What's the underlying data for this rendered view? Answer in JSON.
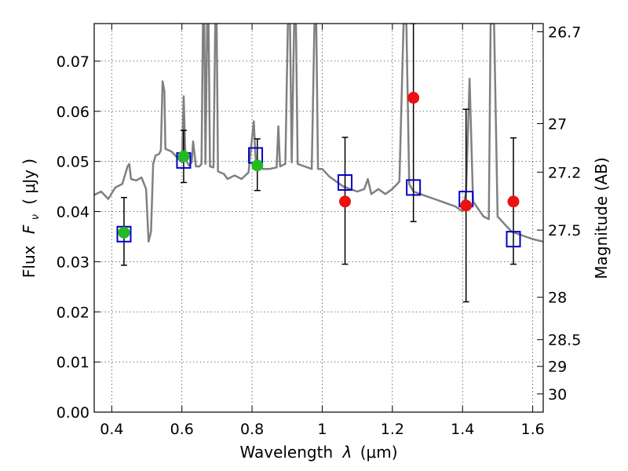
{
  "chart_data": {
    "type": "scatter",
    "xlabel_main": "Wavelength",
    "xlabel_sym": "λ",
    "xlabel_unit": "(μm)",
    "ylabel_main": "Flux",
    "ylabel_sym": "F",
    "ylabel_sub": "ν",
    "ylabel_unit": "( μJy )",
    "y2label": "Magnitude (AB)",
    "xlim": [
      0.35,
      1.63
    ],
    "ylim": [
      0,
      0.0775
    ],
    "grid": true,
    "x_ticks": [
      0.4,
      0.6,
      0.8,
      1.0,
      1.2,
      1.4,
      1.6
    ],
    "x_tick_labels": [
      "0.4",
      "0.6",
      "0.8",
      "1",
      "1.2",
      "1.4",
      "1.6"
    ],
    "y_ticks": [
      0,
      0.01,
      0.02,
      0.03,
      0.04,
      0.05,
      0.06,
      0.07
    ],
    "y_tick_labels": [
      "0.00",
      "0.01",
      "0.02",
      "0.03",
      "0.04",
      "0.05",
      "0.06",
      "0.07"
    ],
    "mag_ticks": [
      26.7,
      27,
      27.2,
      27.5,
      28,
      28.5,
      29,
      30
    ],
    "mag_tick_labels": [
      "26.7",
      "27",
      "27.2",
      "27.5",
      "28",
      "28.5",
      "29",
      "30"
    ],
    "colors": {
      "template": "#808080",
      "model_box": "#0000cc",
      "green_point": "#22bb22",
      "red_point": "#ee1111",
      "errorbar": "#000000"
    },
    "template_spectrum": [
      [
        0.35,
        0.0433
      ],
      [
        0.37,
        0.044
      ],
      [
        0.39,
        0.0425
      ],
      [
        0.41,
        0.0448
      ],
      [
        0.43,
        0.0455
      ],
      [
        0.445,
        0.049
      ],
      [
        0.45,
        0.0495
      ],
      [
        0.455,
        0.0465
      ],
      [
        0.47,
        0.0462
      ],
      [
        0.485,
        0.0468
      ],
      [
        0.498,
        0.0445
      ],
      [
        0.505,
        0.034
      ],
      [
        0.512,
        0.036
      ],
      [
        0.518,
        0.0495
      ],
      [
        0.525,
        0.0512
      ],
      [
        0.535,
        0.0515
      ],
      [
        0.54,
        0.0522
      ],
      [
        0.545,
        0.066
      ],
      [
        0.55,
        0.064
      ],
      [
        0.553,
        0.0525
      ],
      [
        0.57,
        0.052
      ],
      [
        0.59,
        0.0505
      ],
      [
        0.6,
        0.0498
      ],
      [
        0.605,
        0.063
      ],
      [
        0.61,
        0.0505
      ],
      [
        0.62,
        0.0492
      ],
      [
        0.628,
        0.0498
      ],
      [
        0.632,
        0.054
      ],
      [
        0.64,
        0.049
      ],
      [
        0.65,
        0.049
      ],
      [
        0.656,
        0.0495
      ],
      [
        0.66,
        0.0775
      ],
      [
        0.664,
        0.0775
      ],
      [
        0.667,
        0.0495
      ],
      [
        0.672,
        0.0775
      ],
      [
        0.676,
        0.0775
      ],
      [
        0.68,
        0.049
      ],
      [
        0.69,
        0.0488
      ],
      [
        0.695,
        0.0775
      ],
      [
        0.699,
        0.0775
      ],
      [
        0.703,
        0.048
      ],
      [
        0.72,
        0.0475
      ],
      [
        0.73,
        0.0465
      ],
      [
        0.75,
        0.0472
      ],
      [
        0.77,
        0.0465
      ],
      [
        0.79,
        0.0478
      ],
      [
        0.805,
        0.058
      ],
      [
        0.81,
        0.0505
      ],
      [
        0.83,
        0.0485
      ],
      [
        0.85,
        0.0485
      ],
      [
        0.87,
        0.0488
      ],
      [
        0.875,
        0.057
      ],
      [
        0.88,
        0.049
      ],
      [
        0.895,
        0.0495
      ],
      [
        0.902,
        0.0775
      ],
      [
        0.908,
        0.0775
      ],
      [
        0.913,
        0.0498
      ],
      [
        0.92,
        0.0775
      ],
      [
        0.925,
        0.0775
      ],
      [
        0.93,
        0.0495
      ],
      [
        0.95,
        0.049
      ],
      [
        0.97,
        0.0485
      ],
      [
        0.978,
        0.0775
      ],
      [
        0.983,
        0.0775
      ],
      [
        0.988,
        0.0485
      ],
      [
        1.0,
        0.0485
      ],
      [
        1.02,
        0.047
      ],
      [
        1.04,
        0.046
      ],
      [
        1.06,
        0.045
      ],
      [
        1.08,
        0.0445
      ],
      [
        1.1,
        0.044
      ],
      [
        1.12,
        0.0445
      ],
      [
        1.13,
        0.0465
      ],
      [
        1.14,
        0.0435
      ],
      [
        1.16,
        0.0445
      ],
      [
        1.18,
        0.0435
      ],
      [
        1.2,
        0.0445
      ],
      [
        1.22,
        0.046
      ],
      [
        1.232,
        0.0775
      ],
      [
        1.24,
        0.0775
      ],
      [
        1.248,
        0.0455
      ],
      [
        1.26,
        0.044
      ],
      [
        1.28,
        0.0435
      ],
      [
        1.3,
        0.043
      ],
      [
        1.32,
        0.0425
      ],
      [
        1.34,
        0.042
      ],
      [
        1.36,
        0.0415
      ],
      [
        1.38,
        0.041
      ],
      [
        1.4,
        0.04
      ],
      [
        1.41,
        0.044
      ],
      [
        1.42,
        0.0665
      ],
      [
        1.43,
        0.042
      ],
      [
        1.44,
        0.041
      ],
      [
        1.46,
        0.039
      ],
      [
        1.475,
        0.0385
      ],
      [
        1.48,
        0.0775
      ],
      [
        1.49,
        0.0775
      ],
      [
        1.5,
        0.039
      ],
      [
        1.52,
        0.0375
      ],
      [
        1.54,
        0.036
      ],
      [
        1.56,
        0.0355
      ],
      [
        1.58,
        0.035
      ],
      [
        1.6,
        0.0345
      ],
      [
        1.63,
        0.034
      ]
    ],
    "model_boxes": [
      {
        "x": 0.435,
        "y": 0.0355
      },
      {
        "x": 0.605,
        "y": 0.0502
      },
      {
        "x": 0.81,
        "y": 0.0512
      },
      {
        "x": 1.065,
        "y": 0.0458
      },
      {
        "x": 1.26,
        "y": 0.0448
      },
      {
        "x": 1.41,
        "y": 0.0425
      },
      {
        "x": 1.545,
        "y": 0.0345
      }
    ],
    "points": [
      {
        "x": 0.435,
        "y": 0.0358,
        "err_low": 0.0293,
        "err_high": 0.0428,
        "color": "green"
      },
      {
        "x": 0.605,
        "y": 0.051,
        "err_low": 0.0458,
        "err_high": 0.0562,
        "color": "green"
      },
      {
        "x": 0.815,
        "y": 0.0492,
        "err_low": 0.0442,
        "err_high": 0.0545,
        "color": "green"
      },
      {
        "x": 1.065,
        "y": 0.042,
        "err_low": 0.0295,
        "err_high": 0.0548,
        "color": "red"
      },
      {
        "x": 1.26,
        "y": 0.0627,
        "err_low": 0.038,
        "err_high": 0.0775,
        "color": "red"
      },
      {
        "x": 1.41,
        "y": 0.0412,
        "err_low": 0.022,
        "err_high": 0.0604,
        "color": "red"
      },
      {
        "x": 1.545,
        "y": 0.042,
        "err_low": 0.0295,
        "err_high": 0.0547,
        "color": "red"
      }
    ]
  }
}
